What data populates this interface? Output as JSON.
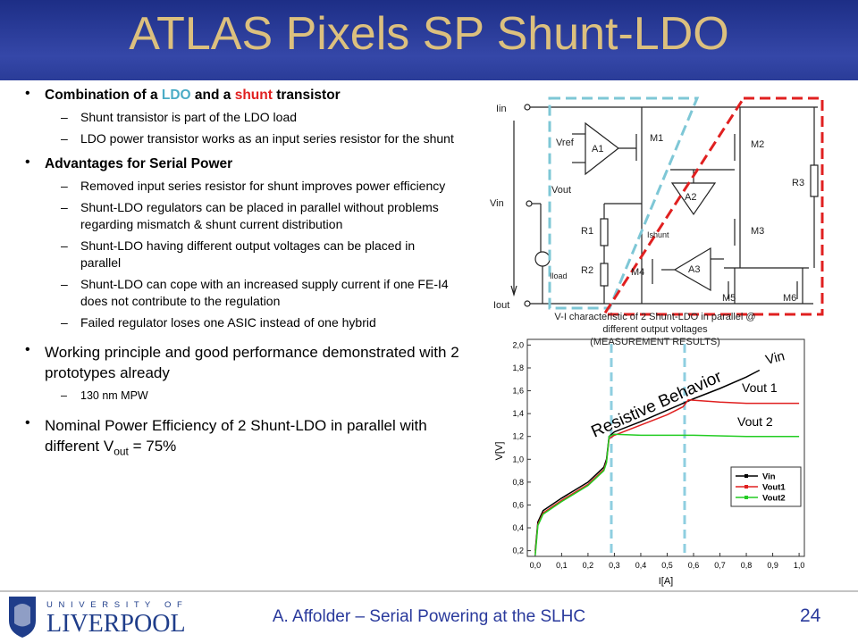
{
  "title": "ATLAS Pixels SP Shunt-LDO",
  "bullets": [
    {
      "parts": [
        "Combination of a ",
        "LDO",
        " and a ",
        "shunt",
        " transistor"
      ],
      "subs": [
        "Shunt transistor is part of the LDO load",
        "LDO power transistor works as an input series resistor for the shunt"
      ]
    },
    {
      "text": "Advantages for Serial Power",
      "subs": [
        "Removed input series resistor for shunt improves power efficiency",
        "Shunt-LDO regulators can be placed in parallel without problems regarding mismatch & shunt current distribution",
        "Shunt-LDO having different output voltages can be placed in parallel",
        "Shunt-LDO can cope with an increased supply current if one FE-I4 does not contribute to the regulation",
        "Failed regulator loses one ASIC instead of one hybrid"
      ]
    },
    {
      "text": "Working principle and good performance demonstrated with 2 prototypes already",
      "subs": [
        "130 nm MPW"
      ]
    },
    {
      "parts": [
        "Nominal Power Efficiency of 2 Shunt-LDO in parallel with different V",
        "out",
        " = 75%"
      ],
      "subs": []
    }
  ],
  "schematic": {
    "iin": "Iin",
    "vin": "Vin",
    "iout": "Iout",
    "vref": "Vref",
    "vout": "Vout",
    "a1": "A1",
    "m1": "M1",
    "m2": "M2",
    "a2": "A2",
    "r3": "R3",
    "m3": "M3",
    "r1": "R1",
    "ishunt": "Ishunt",
    "r2": "R2",
    "iload": "Iload",
    "m4": "M4",
    "a3": "A3",
    "m5": "M5",
    "m6": "M6"
  },
  "caption": [
    "V-I characteristic of 2 Shunt-LDO in parallel @",
    "different output voltages",
    "(MEASUREMENT RESULTS)"
  ],
  "chart_data": {
    "type": "line",
    "x_label": "I[A]",
    "y_label": "V[V]",
    "xlim": [
      -0.03,
      1.02
    ],
    "ylim": [
      0.15,
      2.05
    ],
    "xticks": [
      {
        "value": 0,
        "label": "0,0"
      },
      {
        "value": 0.1,
        "label": "0,1"
      },
      {
        "value": 0.2,
        "label": "0,2"
      },
      {
        "value": 0.3,
        "label": "0,3"
      },
      {
        "value": 0.4,
        "label": "0,4"
      },
      {
        "value": 0.5,
        "label": "0,5"
      },
      {
        "value": 0.6,
        "label": "0,6"
      },
      {
        "value": 0.7,
        "label": "0,7"
      },
      {
        "value": 0.8,
        "label": "0,8"
      },
      {
        "value": 0.9,
        "label": "0,9"
      },
      {
        "value": 1.0,
        "label": "1,0"
      }
    ],
    "yticks": [
      {
        "value": 0.2,
        "label": "0,2"
      },
      {
        "value": 0.4,
        "label": "0,4"
      },
      {
        "value": 0.6,
        "label": "0,6"
      },
      {
        "value": 0.8,
        "label": "0,8"
      },
      {
        "value": 1.0,
        "label": "1,0"
      },
      {
        "value": 1.2,
        "label": "1,2"
      },
      {
        "value": 1.4,
        "label": "1,4"
      },
      {
        "value": 1.6,
        "label": "1,6"
      },
      {
        "value": 1.8,
        "label": "1,8"
      },
      {
        "value": 2.0,
        "label": "2,0"
      }
    ],
    "series": [
      {
        "name": "Vin",
        "color": "#000000",
        "x": [
          0,
          0.01,
          0.03,
          0.1,
          0.2,
          0.26,
          0.27,
          0.28,
          0.3,
          0.4,
          0.5,
          0.6,
          0.7,
          0.8,
          0.85
        ],
        "values": [
          0.2,
          0.45,
          0.55,
          0.66,
          0.8,
          0.93,
          1.0,
          1.2,
          1.24,
          1.33,
          1.43,
          1.53,
          1.62,
          1.72,
          1.78
        ]
      },
      {
        "name": "Vout1",
        "color": "#e02020",
        "x": [
          0,
          0.01,
          0.03,
          0.1,
          0.2,
          0.26,
          0.27,
          0.28,
          0.3,
          0.4,
          0.5,
          0.56,
          0.58,
          0.7,
          0.8,
          0.9,
          1.0
        ],
        "values": [
          0.18,
          0.43,
          0.53,
          0.64,
          0.78,
          0.91,
          0.98,
          1.18,
          1.21,
          1.3,
          1.39,
          1.46,
          1.52,
          1.5,
          1.49,
          1.49,
          1.49
        ]
      },
      {
        "name": "Vout2",
        "color": "#22cc22",
        "x": [
          0,
          0.01,
          0.03,
          0.1,
          0.2,
          0.26,
          0.27,
          0.28,
          0.3,
          0.4,
          0.6,
          0.8,
          1.0
        ],
        "values": [
          0.16,
          0.42,
          0.52,
          0.63,
          0.77,
          0.9,
          0.97,
          1.2,
          1.22,
          1.21,
          1.21,
          1.2,
          1.2
        ]
      }
    ],
    "annotations": [
      "Resistive Behavior",
      "Vin",
      "Vout 1",
      "Vout 2"
    ]
  },
  "footer": {
    "university": "U N I V E R S I T Y   O F",
    "name": "LIVERPOOL",
    "text": "A. Affolder – Serial Powering at the SLHC",
    "page": "24"
  }
}
